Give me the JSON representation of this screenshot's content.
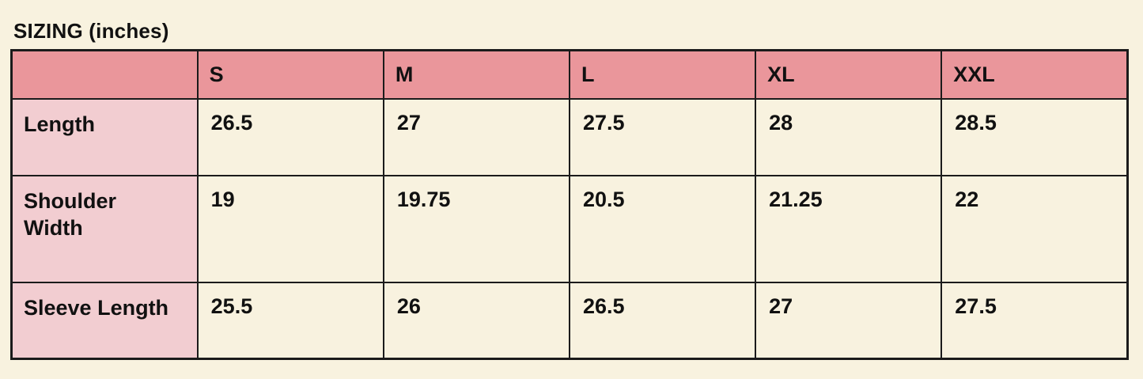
{
  "title": "SIZING (inches)",
  "table": {
    "columns": [
      "",
      "S",
      "M",
      "L",
      "XL",
      "XXL"
    ],
    "rows": [
      {
        "label": "Length",
        "values": [
          "26.5",
          "27",
          "27.5",
          "28",
          "28.5"
        ]
      },
      {
        "label": "Shoulder Width",
        "values": [
          "19",
          "19.75",
          "20.5",
          "21.25",
          "22"
        ]
      },
      {
        "label": "Sleeve Length",
        "values": [
          "25.5",
          "26",
          "26.5",
          "27",
          "27.5"
        ]
      }
    ]
  },
  "colors": {
    "page_background": "#f8f2df",
    "header_background": "#ea969b",
    "label_column_background": "#f2cdd1",
    "border": "#1b1b1b",
    "text": "#111111"
  },
  "chart_data": {
    "type": "table",
    "title": "SIZING (inches)",
    "unit": "inches",
    "columns": [
      "S",
      "M",
      "L",
      "XL",
      "XXL"
    ],
    "series": [
      {
        "name": "Length",
        "values": [
          26.5,
          27,
          27.5,
          28,
          28.5
        ]
      },
      {
        "name": "Shoulder Width",
        "values": [
          19,
          19.75,
          20.5,
          21.25,
          22
        ]
      },
      {
        "name": "Sleeve Length",
        "values": [
          25.5,
          26,
          26.5,
          27,
          27.5
        ]
      }
    ]
  }
}
